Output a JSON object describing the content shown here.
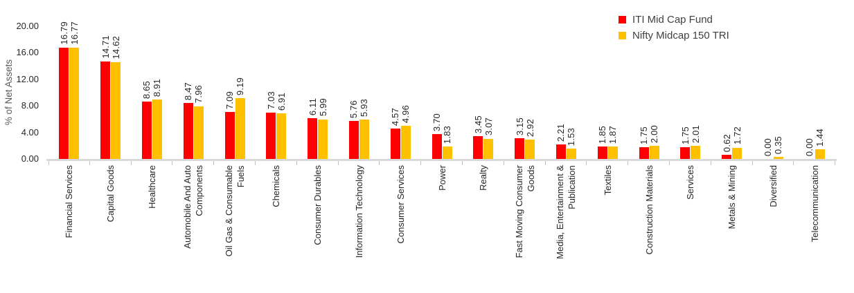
{
  "chart_data": {
    "type": "bar",
    "title": "",
    "xlabel": "",
    "ylabel": "% of Net Assets",
    "ylim": [
      0,
      20
    ],
    "ytick_labels": [
      "0.00",
      "4.00",
      "8.00",
      "12.00",
      "16.00",
      "20.00"
    ],
    "grid": false,
    "legend_position": "top-right",
    "value_labels": "rotated-90-above-bars",
    "category_label_style": "rotated-90",
    "axis_line_color": "#D9D9D9",
    "tick_mark_color": "#BFBFBF",
    "categories": [
      "Financial Services",
      "Capital Goods",
      "Healthcare",
      "Automobile And Auto\nComponents",
      "Oil Gas & Consumable\nFuels",
      "Chemicals",
      "Consumer Durables",
      "Information Technology",
      "Consumer Services",
      "Power",
      "Realty",
      "Fast Moving Consumer\nGoods",
      "Media, Entertainment &\nPublication",
      "Textiles",
      "Construction Materials",
      "Services",
      "Metals & Mining",
      "Diversified",
      "Telecommunication"
    ],
    "series": [
      {
        "name": "ITI Mid Cap Fund",
        "color": "#FF0000",
        "values": [
          16.79,
          14.71,
          8.65,
          8.47,
          7.09,
          7.03,
          6.11,
          5.76,
          4.57,
          3.7,
          3.45,
          3.15,
          2.21,
          1.85,
          1.75,
          1.75,
          0.62,
          0.0,
          0.0
        ]
      },
      {
        "name": "Nifty Midcap 150 TRI",
        "color": "#FFC000",
        "values": [
          16.77,
          14.62,
          8.91,
          7.96,
          9.19,
          6.91,
          5.99,
          5.93,
          4.96,
          1.83,
          3.07,
          2.92,
          1.53,
          1.87,
          2.0,
          2.01,
          1.72,
          0.35,
          1.44
        ]
      }
    ]
  }
}
